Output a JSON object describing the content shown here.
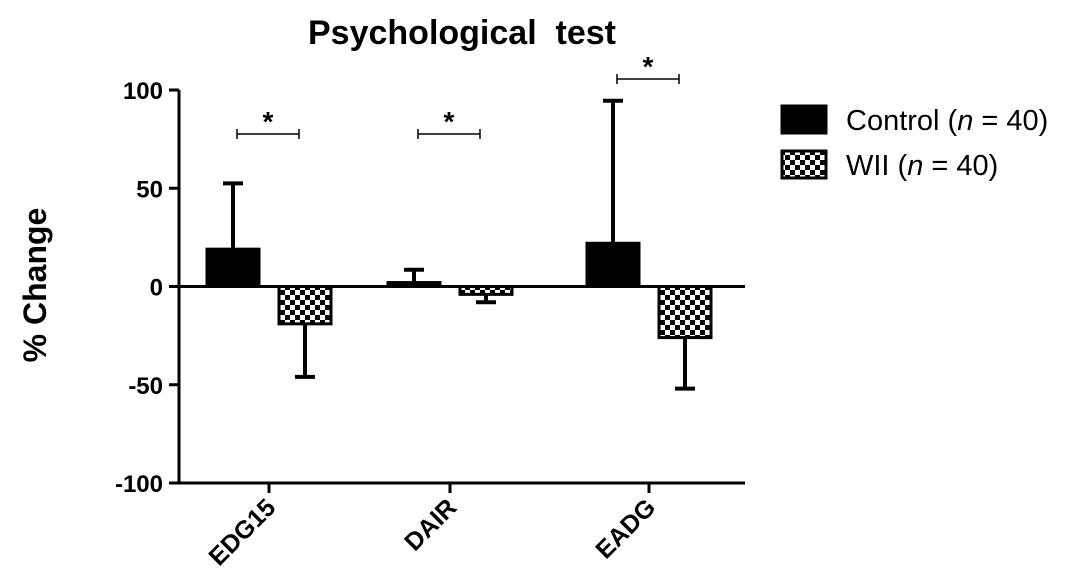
{
  "chart_data": {
    "type": "bar",
    "title": "Psychological  test",
    "xlabel": "",
    "ylabel": "% Change",
    "ylim": [
      -100,
      100
    ],
    "yticks": [
      100,
      50,
      0,
      -50,
      -100
    ],
    "categories": [
      "EDG15",
      "DAIR",
      "EADG"
    ],
    "series": [
      {
        "name": "Control (n = 40)",
        "name_parts": [
          "Control (",
          "n",
          " = 40)"
        ],
        "fill": "solid",
        "values": [
          19,
          2,
          22
        ],
        "error": [
          33.5,
          6.5,
          72.5
        ]
      },
      {
        "name": "WII (n = 40)",
        "name_parts": [
          "WII (",
          "n",
          " = 40)"
        ],
        "fill": "checkered",
        "values": [
          -19,
          -4,
          -26
        ],
        "error": [
          27,
          4,
          26
        ]
      }
    ],
    "significance": [
      {
        "category": "EDG15",
        "label": "*"
      },
      {
        "category": "DAIR",
        "label": "*"
      },
      {
        "category": "EADG",
        "label": "*"
      }
    ],
    "legend_position": "top-right",
    "grid": false,
    "colors": {
      "control": "#000000",
      "wii": "#000000",
      "background": "#ffffff"
    }
  }
}
